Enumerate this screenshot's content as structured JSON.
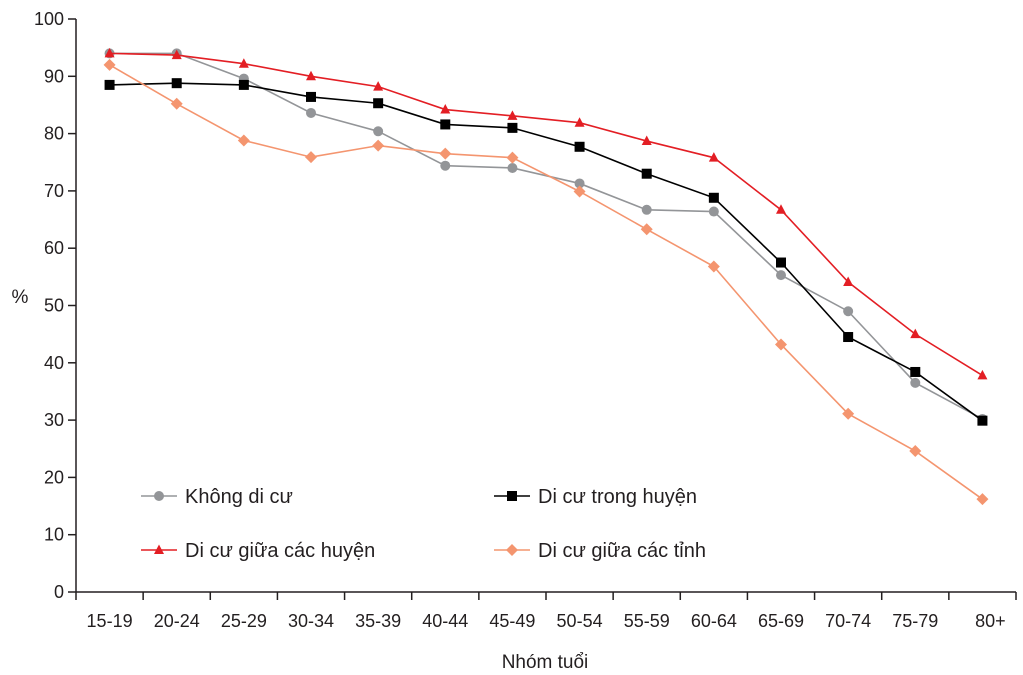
{
  "chart_data": {
    "type": "line",
    "title": "",
    "xlabel": "Nhóm tuổi",
    "ylabel": "%",
    "ylim": [
      0,
      100
    ],
    "yticks": [
      0,
      10,
      20,
      30,
      40,
      50,
      60,
      70,
      80,
      90,
      100
    ],
    "categories": [
      "15-19",
      "20-24",
      "25-29",
      "30-34",
      "35-39",
      "40-44",
      "45-49",
      "50-54",
      "55-59",
      "60-64",
      "65-69",
      "70-74",
      "75-79",
      "80+"
    ],
    "grid": false,
    "legend_position": "bottom-inside",
    "series": [
      {
        "name": "Không di cư",
        "color": "#939598",
        "marker": "circle",
        "values": [
          94.0,
          94.0,
          89.6,
          83.6,
          80.4,
          74.4,
          74.0,
          71.3,
          66.7,
          66.4,
          55.3,
          49.0,
          36.5,
          30.2
        ]
      },
      {
        "name": "Di cư trong huyện",
        "color": "#000000",
        "marker": "square",
        "values": [
          88.5,
          88.8,
          88.5,
          86.4,
          85.3,
          81.6,
          81.0,
          77.7,
          73.0,
          68.8,
          57.5,
          44.5,
          38.4,
          29.9
        ]
      },
      {
        "name": "Di cư giữa các huyện",
        "color": "#e31e24",
        "marker": "triangle",
        "values": [
          94.0,
          93.7,
          92.2,
          90.0,
          88.2,
          84.2,
          83.1,
          81.9,
          78.7,
          75.8,
          66.7,
          54.1,
          45.0,
          37.8
        ]
      },
      {
        "name": "Di cư giữa các tỉnh",
        "color": "#f4956f",
        "marker": "diamond",
        "values": [
          92.0,
          85.2,
          78.8,
          75.9,
          77.9,
          76.5,
          75.8,
          69.9,
          63.3,
          56.8,
          43.2,
          31.1,
          24.6,
          16.2
        ]
      }
    ]
  }
}
